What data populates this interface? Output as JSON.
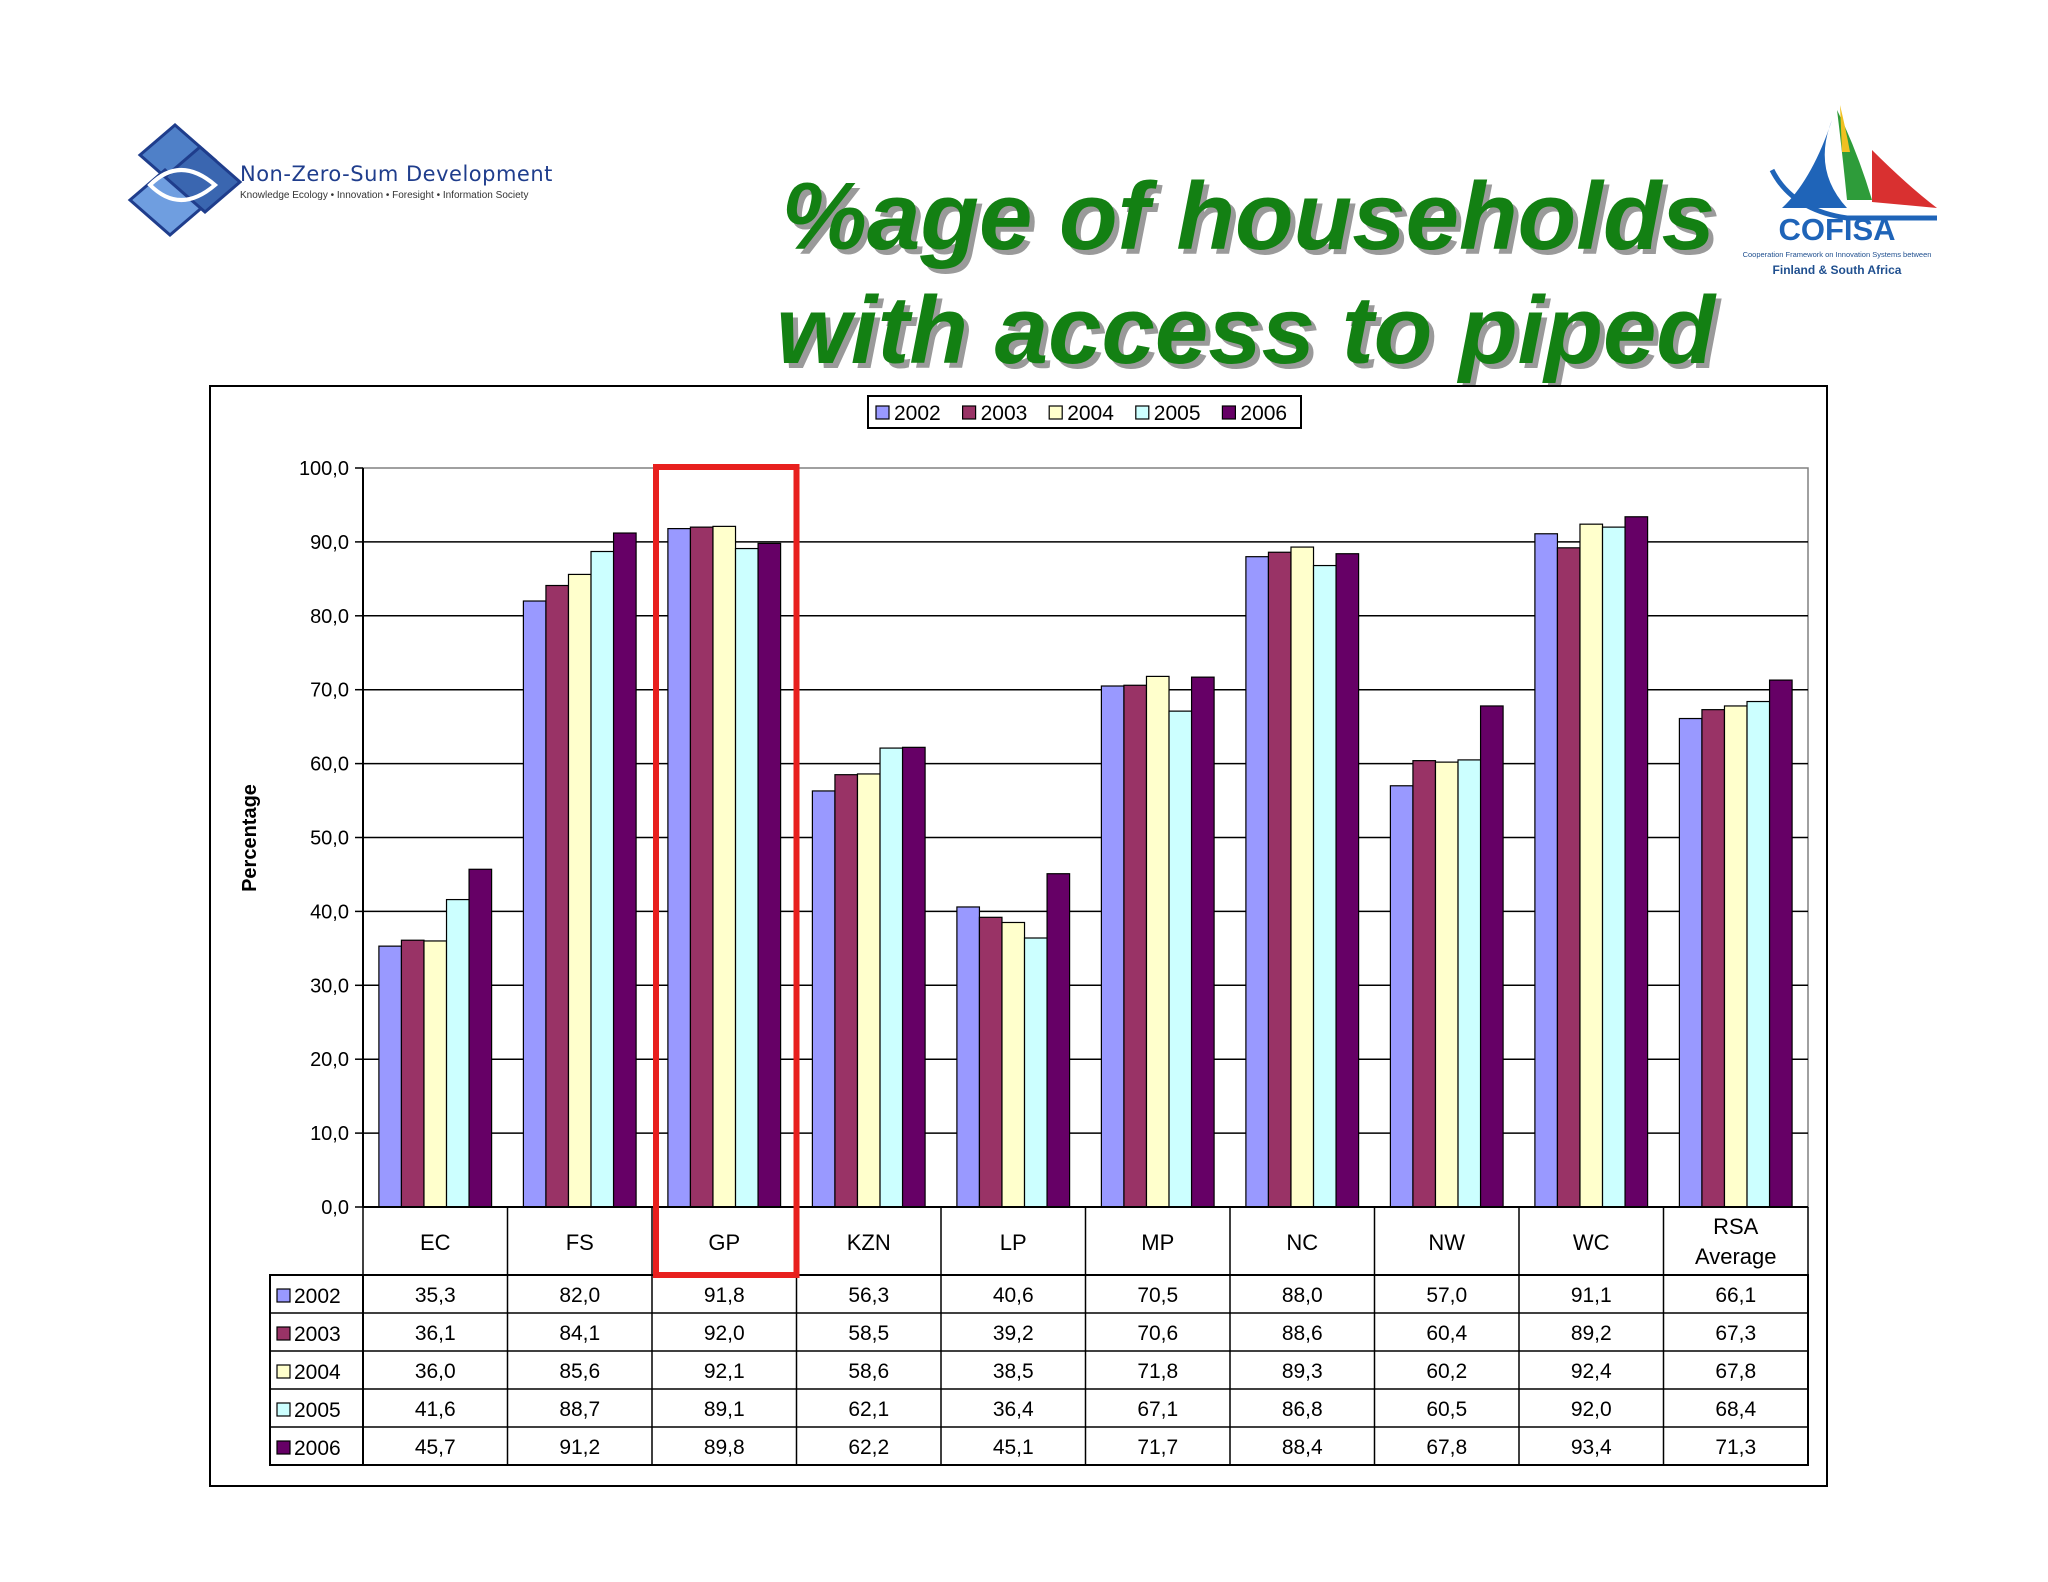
{
  "slide": {
    "title_line1": "%age of households",
    "title_line2": "with access to piped water"
  },
  "logos": {
    "left": {
      "name": "Non-Zero-Sum Development",
      "tagline": "Knowledge Ecology • Innovation • Foresight • Information Society"
    },
    "right": {
      "name": "COFISA",
      "tagline": "Cooperation Framework on Innovation Systems between",
      "tagline2": "Finland & South Africa"
    }
  },
  "colors": {
    "title": "#138013",
    "highlight_box": "#e8201e",
    "series": [
      "#9999ff",
      "#993366",
      "#ffffcc",
      "#ccffff",
      "#660066"
    ]
  },
  "chart_data": {
    "type": "bar",
    "title": "",
    "xlabel": "",
    "ylabel": "Percentage",
    "ylim": [
      0,
      100
    ],
    "yticks": [
      "100,0",
      "90,0",
      "80,0",
      "70,0",
      "60,0",
      "50,0",
      "40,0",
      "30,0",
      "20,0",
      "10,0",
      "0,0"
    ],
    "categories": [
      "EC",
      "FS",
      "GP",
      "KZN",
      "LP",
      "MP",
      "NC",
      "NW",
      "WC",
      "RSA Average"
    ],
    "highlighted_category": "GP",
    "legend_position": "top-center",
    "grid": true,
    "data_table": true,
    "series": [
      {
        "name": "2002",
        "values": [
          35.3,
          82.0,
          91.8,
          56.3,
          40.6,
          70.5,
          88.0,
          57.0,
          91.1,
          66.1
        ],
        "labels": [
          "35,3",
          "82,0",
          "91,8",
          "56,3",
          "40,6",
          "70,5",
          "88,0",
          "57,0",
          "91,1",
          "66,1"
        ]
      },
      {
        "name": "2003",
        "values": [
          36.1,
          84.1,
          92.0,
          58.5,
          39.2,
          70.6,
          88.6,
          60.4,
          89.2,
          67.3
        ],
        "labels": [
          "36,1",
          "84,1",
          "92,0",
          "58,5",
          "39,2",
          "70,6",
          "88,6",
          "60,4",
          "89,2",
          "67,3"
        ]
      },
      {
        "name": "2004",
        "values": [
          36.0,
          85.6,
          92.1,
          58.6,
          38.5,
          71.8,
          89.3,
          60.2,
          92.4,
          67.8
        ],
        "labels": [
          "36,0",
          "85,6",
          "92,1",
          "58,6",
          "38,5",
          "71,8",
          "89,3",
          "60,2",
          "92,4",
          "67,8"
        ]
      },
      {
        "name": "2005",
        "values": [
          41.6,
          88.7,
          89.1,
          62.1,
          36.4,
          67.1,
          86.8,
          60.5,
          92.0,
          68.4
        ],
        "labels": [
          "41,6",
          "88,7",
          "89,1",
          "62,1",
          "36,4",
          "67,1",
          "86,8",
          "60,5",
          "92,0",
          "68,4"
        ]
      },
      {
        "name": "2006",
        "values": [
          45.7,
          91.2,
          89.8,
          62.2,
          45.1,
          71.7,
          88.4,
          67.8,
          93.4,
          71.3
        ],
        "labels": [
          "45,7",
          "91,2",
          "89,8",
          "62,2",
          "45,1",
          "71,7",
          "88,4",
          "67,8",
          "93,4",
          "71,3"
        ]
      }
    ]
  }
}
